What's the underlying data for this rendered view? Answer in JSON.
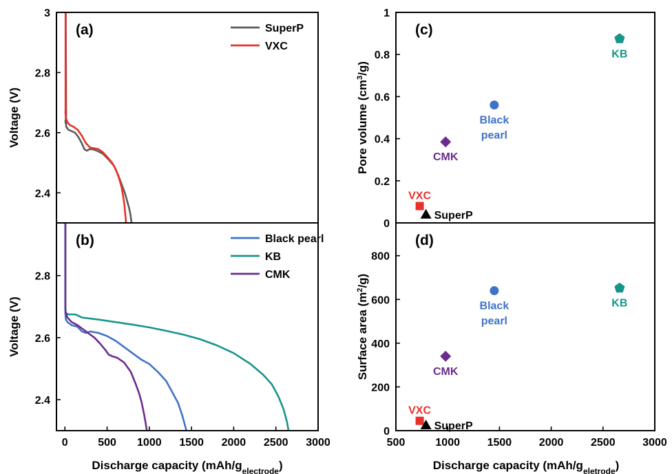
{
  "figure": {
    "xlabel_left": "Discharge capacity (mAh/g",
    "xlabel_left_sub": "electrode",
    "xlabel_right": "Discharge capacity (mAh/g",
    "xlabel_right_sub": "eletrode"
  },
  "chart_data": [
    {
      "panel": "(a)",
      "type": "line",
      "ylabel": "Voltage (V)",
      "xlim": [
        -100,
        3000
      ],
      "ylim": [
        2.3,
        3.0
      ],
      "xticks": [],
      "yticks": [
        "2.4",
        "2.6",
        "2.8",
        "3"
      ],
      "legend_position": "top-right",
      "series": [
        {
          "name": "SuperP",
          "color": "#5a5a5a",
          "x": [
            5,
            10,
            10,
            15,
            40,
            80,
            120,
            160,
            200,
            230,
            260,
            290,
            330,
            380,
            450,
            520,
            580,
            630,
            670,
            710,
            740,
            760,
            775,
            785,
            790
          ],
          "y": [
            2.64,
            2.63,
            3.0,
            2.62,
            2.61,
            2.605,
            2.6,
            2.585,
            2.565,
            2.545,
            2.54,
            2.545,
            2.545,
            2.54,
            2.53,
            2.51,
            2.49,
            2.46,
            2.43,
            2.4,
            2.37,
            2.35,
            2.33,
            2.31,
            2.3
          ]
        },
        {
          "name": "VXC",
          "color": "#e8312a",
          "x": [
            5,
            8,
            8,
            10,
            30,
            60,
            100,
            150,
            200,
            250,
            300,
            350,
            400,
            450,
            500,
            560,
            600,
            640,
            670,
            690,
            705,
            715,
            725
          ],
          "y": [
            2.67,
            2.66,
            3.0,
            2.65,
            2.635,
            2.625,
            2.62,
            2.61,
            2.59,
            2.565,
            2.55,
            2.548,
            2.545,
            2.535,
            2.52,
            2.5,
            2.48,
            2.45,
            2.42,
            2.39,
            2.36,
            2.33,
            2.3
          ]
        }
      ]
    },
    {
      "panel": "(b)",
      "type": "line",
      "ylabel": "Voltage (V)",
      "xlim": [
        -100,
        3000
      ],
      "ylim": [
        2.3,
        2.97
      ],
      "xticks": [
        "0",
        "500",
        "1000",
        "1500",
        "2000",
        "2500",
        "3000"
      ],
      "yticks": [
        "2.4",
        "2.6",
        "2.8"
      ],
      "legend_position": "top-right",
      "series": [
        {
          "name": "Black pearl",
          "color": "#3f72c8",
          "x": [
            5,
            5,
            10,
            30,
            80,
            150,
            200,
            250,
            300,
            400,
            500,
            600,
            700,
            800,
            900,
            1000,
            1100,
            1200,
            1280,
            1340,
            1390,
            1420,
            1440
          ],
          "y": [
            2.97,
            2.68,
            2.66,
            2.65,
            2.64,
            2.635,
            2.62,
            2.615,
            2.62,
            2.615,
            2.605,
            2.59,
            2.57,
            2.55,
            2.53,
            2.515,
            2.49,
            2.46,
            2.42,
            2.39,
            2.35,
            2.32,
            2.3
          ]
        },
        {
          "name": "KB",
          "color": "#17958a",
          "x": [
            5,
            5,
            10,
            40,
            80,
            120,
            150,
            200,
            400,
            600,
            800,
            1000,
            1200,
            1400,
            1600,
            1800,
            2000,
            2200,
            2350,
            2450,
            2530,
            2590,
            2630,
            2650
          ],
          "y": [
            2.96,
            2.69,
            2.68,
            2.675,
            2.675,
            2.675,
            2.672,
            2.665,
            2.658,
            2.65,
            2.642,
            2.633,
            2.622,
            2.61,
            2.595,
            2.575,
            2.55,
            2.515,
            2.48,
            2.45,
            2.41,
            2.37,
            2.33,
            2.3
          ]
        },
        {
          "name": "CMK",
          "color": "#6a2c8e",
          "x": [
            5,
            5,
            10,
            30,
            80,
            150,
            250,
            350,
            420,
            480,
            520,
            560,
            620,
            700,
            780,
            840,
            880,
            910,
            940,
            960,
            970
          ],
          "y": [
            2.97,
            2.7,
            2.68,
            2.665,
            2.65,
            2.64,
            2.62,
            2.6,
            2.58,
            2.56,
            2.545,
            2.54,
            2.535,
            2.52,
            2.49,
            2.45,
            2.42,
            2.39,
            2.35,
            2.32,
            2.3
          ]
        }
      ]
    },
    {
      "panel": "(c)",
      "type": "scatter",
      "ylabel": "Pore volume (cm",
      "ylabel_sup": "3",
      "ylabel_end": "/g)",
      "xlim": [
        500,
        3000
      ],
      "ylim": [
        0,
        1
      ],
      "xticks": [],
      "yticks": [
        "0",
        "0.2",
        "0.4",
        "0.6",
        "0.8",
        "1"
      ],
      "points": [
        {
          "name": "VXC",
          "label_lines": [
            "VXC"
          ],
          "x": 730,
          "y": 0.08,
          "marker": "square",
          "color": "#e8312a",
          "label_color": "#e8312a",
          "label_pos": "above"
        },
        {
          "name": "SuperP",
          "label_lines": [
            "SuperP"
          ],
          "x": 790,
          "y": 0.04,
          "marker": "triangle",
          "color": "#000000",
          "label_color": "#000000",
          "label_pos": "right"
        },
        {
          "name": "CMK",
          "label_lines": [
            "CMK"
          ],
          "x": 980,
          "y": 0.385,
          "marker": "diamond",
          "color": "#6a2c8e",
          "label_color": "#6a2c8e",
          "label_pos": "below"
        },
        {
          "name": "Black pearl",
          "label_lines": [
            "Black",
            "pearl"
          ],
          "x": 1450,
          "y": 0.56,
          "marker": "circle",
          "color": "#3f72c8",
          "label_color": "#3f72c8",
          "label_pos": "below"
        },
        {
          "name": "KB",
          "label_lines": [
            "KB"
          ],
          "x": 2660,
          "y": 0.875,
          "marker": "pentagon",
          "color": "#17958a",
          "label_color": "#17958a",
          "label_pos": "below"
        }
      ]
    },
    {
      "panel": "(d)",
      "type": "scatter",
      "ylabel": "Surface area (m",
      "ylabel_sup": "2",
      "ylabel_end": "/g)",
      "xlim": [
        500,
        3000
      ],
      "ylim": [
        0,
        950
      ],
      "xticks": [
        "500",
        "1000",
        "1500",
        "2000",
        "2500",
        "3000"
      ],
      "yticks": [
        "0",
        "200",
        "400",
        "600",
        "800"
      ],
      "points": [
        {
          "name": "VXC",
          "label_lines": [
            "VXC"
          ],
          "x": 730,
          "y": 45,
          "marker": "square",
          "color": "#e8312a",
          "label_color": "#e8312a",
          "label_pos": "above"
        },
        {
          "name": "SuperP",
          "label_lines": [
            "SuperP"
          ],
          "x": 790,
          "y": 25,
          "marker": "triangle",
          "color": "#000000",
          "label_color": "#000000",
          "label_pos": "right"
        },
        {
          "name": "CMK",
          "label_lines": [
            "CMK"
          ],
          "x": 980,
          "y": 340,
          "marker": "diamond",
          "color": "#6a2c8e",
          "label_color": "#6a2c8e",
          "label_pos": "below"
        },
        {
          "name": "Black pearl",
          "label_lines": [
            "Black",
            "pearl"
          ],
          "x": 1450,
          "y": 640,
          "marker": "circle",
          "color": "#3f72c8",
          "label_color": "#3f72c8",
          "label_pos": "below"
        },
        {
          "name": "KB",
          "label_lines": [
            "KB"
          ],
          "x": 2660,
          "y": 652,
          "marker": "pentagon",
          "color": "#17958a",
          "label_color": "#17958a",
          "label_pos": "below"
        }
      ]
    }
  ]
}
